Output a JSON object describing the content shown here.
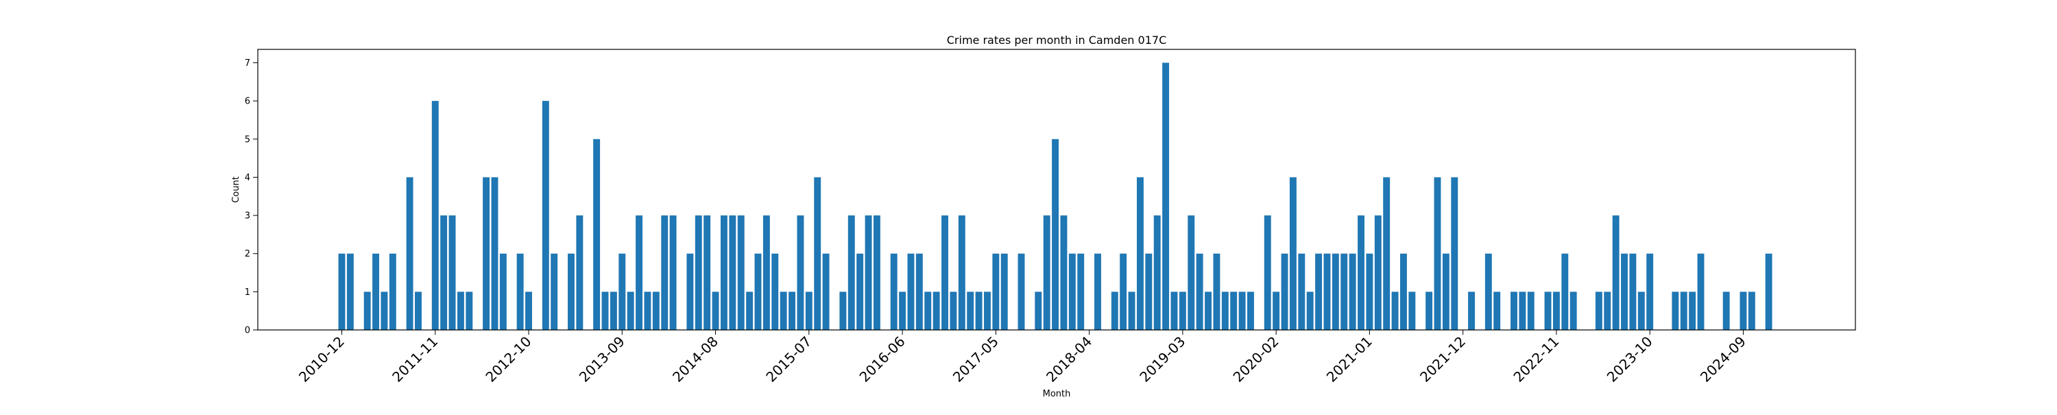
{
  "chart_data": {
    "type": "bar",
    "title": "Crime rates per month in Camden 017C",
    "xlabel": "Month",
    "ylabel": "Count",
    "ylim": [
      0,
      7.35
    ],
    "y_ticks": [
      0,
      1,
      2,
      3,
      4,
      5,
      6,
      7
    ],
    "x_ticks": [
      "2010-12",
      "2011-11",
      "2012-10",
      "2013-09",
      "2014-08",
      "2015-07",
      "2016-06",
      "2017-05",
      "2018-04",
      "2019-03",
      "2020-02",
      "2021-01",
      "2021-12",
      "2022-11",
      "2023-10",
      "2024-09"
    ],
    "start_month": "2010-12",
    "bar_color": "#1f77b4",
    "grid": false,
    "legend": "none",
    "categories": [
      "2010-12",
      "2011-01",
      "2011-02",
      "2011-03",
      "2011-04",
      "2011-05",
      "2011-06",
      "2011-07",
      "2011-08",
      "2011-09",
      "2011-10",
      "2011-11",
      "2011-12",
      "2012-01",
      "2012-02",
      "2012-03",
      "2012-04",
      "2012-05",
      "2012-06",
      "2012-07",
      "2012-08",
      "2012-09",
      "2012-10",
      "2012-11",
      "2012-12",
      "2013-01",
      "2013-02",
      "2013-03",
      "2013-04",
      "2013-05",
      "2013-06",
      "2013-07",
      "2013-08",
      "2013-09",
      "2013-10",
      "2013-11",
      "2013-12",
      "2014-01",
      "2014-02",
      "2014-03",
      "2014-04",
      "2014-05",
      "2014-06",
      "2014-07",
      "2014-08",
      "2014-09",
      "2014-10",
      "2014-11",
      "2014-12",
      "2015-01",
      "2015-02",
      "2015-03",
      "2015-04",
      "2015-05",
      "2015-06",
      "2015-07",
      "2015-08",
      "2015-09",
      "2015-10",
      "2015-11",
      "2015-12",
      "2016-01",
      "2016-02",
      "2016-03",
      "2016-04",
      "2016-05",
      "2016-06",
      "2016-07",
      "2016-08",
      "2016-09",
      "2016-10",
      "2016-11",
      "2016-12",
      "2017-01",
      "2017-02",
      "2017-03",
      "2017-04",
      "2017-05",
      "2017-06",
      "2017-07",
      "2017-08",
      "2017-09",
      "2017-10",
      "2017-11",
      "2017-12",
      "2018-01",
      "2018-02",
      "2018-03",
      "2018-04",
      "2018-05",
      "2018-06",
      "2018-07",
      "2018-08",
      "2018-09",
      "2018-10",
      "2018-11",
      "2018-12",
      "2019-01",
      "2019-02",
      "2019-03",
      "2019-04",
      "2019-05",
      "2019-06",
      "2019-07",
      "2019-08",
      "2019-09",
      "2019-10",
      "2019-11",
      "2019-12",
      "2020-01",
      "2020-02",
      "2020-03",
      "2020-04",
      "2020-05",
      "2020-06",
      "2020-07",
      "2020-08",
      "2020-09",
      "2020-10",
      "2020-11",
      "2020-12",
      "2021-01",
      "2021-02",
      "2021-03",
      "2021-04",
      "2021-05",
      "2021-06",
      "2021-07",
      "2021-08",
      "2021-09",
      "2021-10",
      "2021-11",
      "2021-12",
      "2022-01",
      "2022-02",
      "2022-03",
      "2022-04",
      "2022-05",
      "2022-06",
      "2022-07",
      "2022-08",
      "2022-09",
      "2022-10",
      "2022-11",
      "2022-12",
      "2023-01",
      "2023-02",
      "2023-03",
      "2023-04",
      "2023-05",
      "2023-06",
      "2023-07",
      "2023-08",
      "2023-09",
      "2023-10",
      "2023-11",
      "2023-12",
      "2024-01",
      "2024-02",
      "2024-03",
      "2024-04",
      "2024-05",
      "2024-06",
      "2024-07",
      "2024-08",
      "2024-09",
      "2024-10",
      "2024-11",
      "2024-12"
    ],
    "values": [
      2,
      2,
      0,
      1,
      2,
      1,
      2,
      0,
      4,
      1,
      0,
      6,
      3,
      3,
      1,
      1,
      0,
      4,
      4,
      2,
      0,
      2,
      1,
      0,
      6,
      2,
      0,
      2,
      3,
      0,
      5,
      1,
      1,
      2,
      1,
      3,
      1,
      1,
      3,
      3,
      0,
      2,
      3,
      3,
      1,
      3,
      3,
      3,
      1,
      2,
      3,
      2,
      1,
      1,
      3,
      1,
      4,
      2,
      0,
      1,
      3,
      2,
      3,
      3,
      0,
      2,
      1,
      2,
      2,
      1,
      1,
      3,
      1,
      3,
      1,
      1,
      1,
      2,
      2,
      0,
      2,
      0,
      1,
      3,
      5,
      3,
      2,
      2,
      0,
      2,
      0,
      1,
      2,
      1,
      4,
      2,
      3,
      7,
      1,
      1,
      3,
      2,
      1,
      2,
      1,
      1,
      1,
      1,
      0,
      3,
      1,
      2,
      4,
      2,
      1,
      2,
      2,
      2,
      2,
      2,
      3,
      2,
      3,
      4,
      1,
      2,
      1,
      0,
      1,
      4,
      2,
      4,
      0,
      1,
      0,
      2,
      1,
      0,
      1,
      1,
      1,
      0,
      1,
      1,
      2,
      1,
      0,
      0,
      1,
      1,
      3,
      2,
      2,
      1,
      2,
      0,
      0,
      1,
      1,
      1,
      2,
      0,
      0,
      1,
      0,
      1,
      1,
      0,
      2
    ]
  }
}
